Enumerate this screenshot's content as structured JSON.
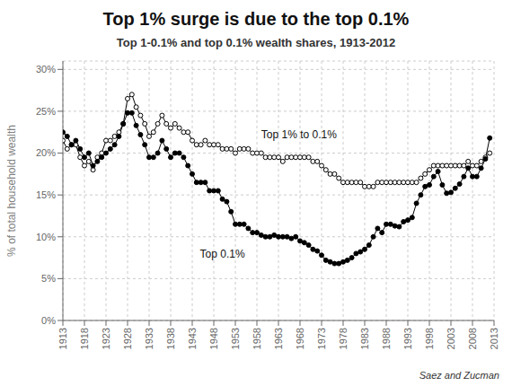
{
  "chart_data": {
    "type": "line",
    "title": "Top 1% surge is due to the top 0.1%",
    "subtitle": "Top 1-0.1% and top 0.1% wealth shares, 1913-2012",
    "ylabel": "% of total household wealth",
    "source": "Saez and Zucman",
    "grid": true,
    "xlim": [
      1913,
      2013
    ],
    "xticks": [
      1913,
      1918,
      1923,
      1928,
      1933,
      1938,
      1943,
      1948,
      1953,
      1958,
      1963,
      1968,
      1973,
      1978,
      1983,
      1988,
      1993,
      1998,
      2003,
      2008,
      2013
    ],
    "ylim": [
      0,
      0.31
    ],
    "yticks": [
      {
        "value": 0,
        "label": "0%"
      },
      {
        "value": 0.05,
        "label": "5%"
      },
      {
        "value": 0.1,
        "label": "10%"
      },
      {
        "value": 0.15,
        "label": "15%"
      },
      {
        "value": 0.2,
        "label": "20%"
      },
      {
        "value": 0.25,
        "label": "25%"
      },
      {
        "value": 0.3,
        "label": "30%"
      }
    ],
    "annotations": [
      {
        "text": "Top 1% to 0.1%",
        "x": 1959,
        "y": 0.213
      },
      {
        "text": "Top 0.1%",
        "x": 1950,
        "y": 0.088
      }
    ],
    "x": [
      1913,
      1914,
      1915,
      1916,
      1917,
      1918,
      1919,
      1920,
      1921,
      1922,
      1923,
      1924,
      1925,
      1926,
      1927,
      1928,
      1929,
      1930,
      1931,
      1932,
      1933,
      1934,
      1935,
      1936,
      1937,
      1938,
      1939,
      1940,
      1941,
      1942,
      1943,
      1944,
      1945,
      1946,
      1947,
      1948,
      1949,
      1950,
      1951,
      1952,
      1953,
      1954,
      1955,
      1956,
      1957,
      1958,
      1959,
      1960,
      1961,
      1962,
      1963,
      1964,
      1965,
      1966,
      1967,
      1968,
      1969,
      1970,
      1971,
      1972,
      1973,
      1974,
      1975,
      1976,
      1977,
      1978,
      1979,
      1980,
      1981,
      1982,
      1983,
      1984,
      1985,
      1986,
      1987,
      1988,
      1989,
      1990,
      1991,
      1992,
      1993,
      1994,
      1995,
      1996,
      1997,
      1998,
      1999,
      2000,
      2001,
      2002,
      2003,
      2004,
      2005,
      2006,
      2007,
      2008,
      2009,
      2010,
      2011,
      2012
    ],
    "series": [
      {
        "color": "#000000",
        "marker": "open_circle",
        "values": [
          0.215,
          0.205,
          0.21,
          0.21,
          0.195,
          0.185,
          0.19,
          0.18,
          0.195,
          0.2,
          0.215,
          0.215,
          0.22,
          0.225,
          0.235,
          0.265,
          0.27,
          0.255,
          0.245,
          0.235,
          0.22,
          0.225,
          0.235,
          0.245,
          0.235,
          0.23,
          0.235,
          0.23,
          0.225,
          0.225,
          0.215,
          0.21,
          0.21,
          0.215,
          0.21,
          0.21,
          0.21,
          0.205,
          0.205,
          0.205,
          0.2,
          0.205,
          0.205,
          0.205,
          0.2,
          0.2,
          0.2,
          0.195,
          0.195,
          0.195,
          0.195,
          0.19,
          0.195,
          0.195,
          0.195,
          0.195,
          0.195,
          0.195,
          0.19,
          0.19,
          0.185,
          0.18,
          0.175,
          0.175,
          0.17,
          0.165,
          0.165,
          0.165,
          0.165,
          0.165,
          0.16,
          0.16,
          0.16,
          0.165,
          0.165,
          0.165,
          0.165,
          0.165,
          0.165,
          0.165,
          0.165,
          0.165,
          0.165,
          0.17,
          0.175,
          0.18,
          0.185,
          0.185,
          0.185,
          0.185,
          0.185,
          0.185,
          0.185,
          0.185,
          0.19,
          0.185,
          0.185,
          0.19,
          0.195,
          0.2
        ]
      },
      {
        "color": "#000000",
        "marker": "filled_circle",
        "values": [
          0.225,
          0.22,
          0.21,
          0.215,
          0.205,
          0.195,
          0.2,
          0.185,
          0.19,
          0.195,
          0.2,
          0.205,
          0.21,
          0.22,
          0.235,
          0.248,
          0.248,
          0.233,
          0.222,
          0.21,
          0.195,
          0.195,
          0.2,
          0.215,
          0.205,
          0.195,
          0.2,
          0.2,
          0.195,
          0.185,
          0.175,
          0.165,
          0.165,
          0.165,
          0.155,
          0.155,
          0.155,
          0.145,
          0.142,
          0.13,
          0.115,
          0.115,
          0.115,
          0.11,
          0.105,
          0.105,
          0.102,
          0.1,
          0.1,
          0.102,
          0.1,
          0.1,
          0.1,
          0.098,
          0.1,
          0.095,
          0.093,
          0.09,
          0.085,
          0.083,
          0.078,
          0.072,
          0.07,
          0.068,
          0.068,
          0.07,
          0.072,
          0.075,
          0.08,
          0.082,
          0.085,
          0.09,
          0.1,
          0.11,
          0.105,
          0.115,
          0.115,
          0.113,
          0.112,
          0.118,
          0.12,
          0.123,
          0.14,
          0.15,
          0.16,
          0.162,
          0.172,
          0.178,
          0.162,
          0.152,
          0.153,
          0.158,
          0.163,
          0.172,
          0.182,
          0.172,
          0.172,
          0.182,
          0.193,
          0.218
        ]
      }
    ]
  }
}
